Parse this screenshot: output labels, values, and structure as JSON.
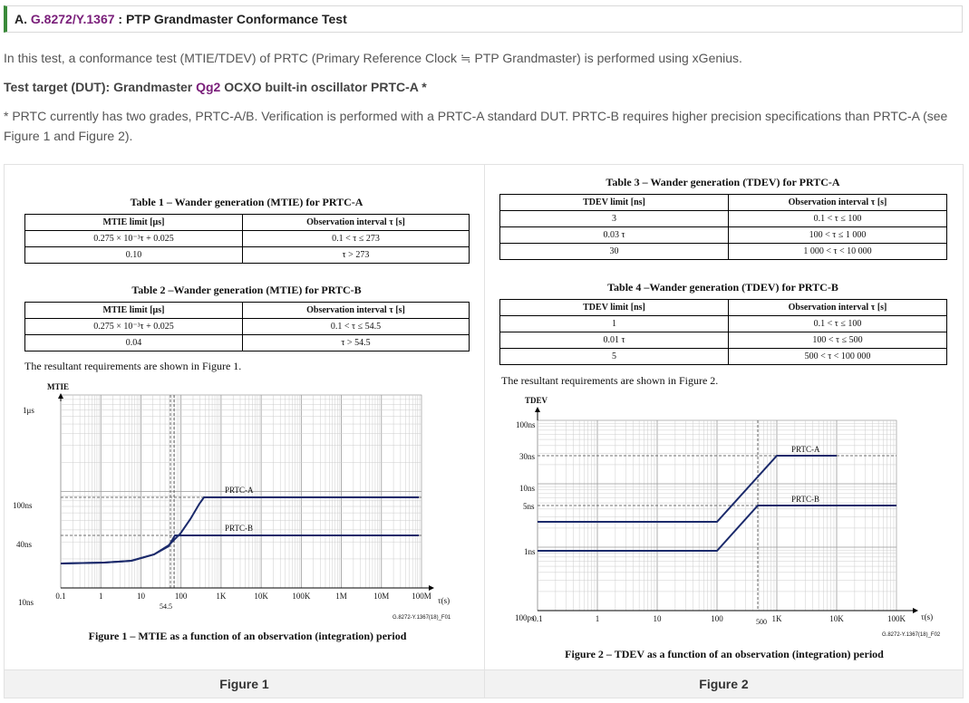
{
  "section": {
    "prefix": "A.",
    "link": "G.8272/Y.1367",
    "rest": ": PTP Grandmaster Conformance Test"
  },
  "intro": "In this test, a conformance test (MTIE/TDEV) of PRTC (Primary Reference Clock ≒ PTP Grandmaster) is performed using xGenius.",
  "target": {
    "a": "Test target (DUT): Grandmaster ",
    "link": "Qg2",
    "b": " OCXO built-in oscillator PRTC-A *"
  },
  "note_line1": "* PRTC currently has two grades, PRTC-A/B. Verification is performed with a PRTC-A standard DUT. PRTC-B requires higher precision specifications than PRTC-A (see",
  "note_line2": "Figure 1 and Figure 2).",
  "left": {
    "table1": {
      "caption": "Table 1 – Wander generation (MTIE) for PRTC-A",
      "headers": [
        "MTIE limit [μs]",
        "Observation interval τ [s]"
      ],
      "rows": [
        [
          "0.275 × 10⁻³τ + 0.025",
          "0.1 < τ ≤ 273"
        ],
        [
          "0.10",
          "τ > 273"
        ]
      ]
    },
    "table2": {
      "caption": "Table 2 –Wander generation (MTIE) for PRTC-B",
      "headers": [
        "MTIE limit [μs]",
        "Observation interval τ [s]"
      ],
      "rows": [
        [
          "0.275 × 10⁻³τ + 0.025",
          "0.1 < τ ≤ 54.5"
        ],
        [
          "0.04",
          "τ > 54.5"
        ]
      ]
    },
    "resultant": "The resultant requirements are shown in Figure 1.",
    "chart": {
      "ylabel": "MTIE",
      "yticks": [
        "1μs",
        "100ns",
        "40ns",
        "10ns"
      ],
      "xticks": [
        "0.1",
        "1",
        "10",
        "100",
        "1K",
        "10K",
        "100K",
        "1M",
        "10M",
        "100M"
      ],
      "xextra": "54.5",
      "xunit": "τ(s)",
      "code": "G.8272-Y.1367(18)_F01",
      "labelA": "PRTC-A",
      "labelB": "PRTC-B",
      "title": "Figure 1 – MTIE as a function of an observation (integration) period"
    },
    "caption": "Figure 1"
  },
  "right": {
    "table3": {
      "caption": "Table 3 – Wander generation (TDEV) for PRTC-A",
      "headers": [
        "TDEV limit [ns]",
        "Observation interval τ [s]"
      ],
      "rows": [
        [
          "3",
          "0.1 < τ ≤ 100"
        ],
        [
          "0.03 τ",
          "100 < τ ≤ 1 000"
        ],
        [
          "30",
          "1 000 < τ < 10 000"
        ]
      ]
    },
    "table4": {
      "caption": "Table 4 –Wander generation (TDEV) for PRTC-B",
      "headers": [
        "TDEV limit [ns]",
        "Observation interval τ [s]"
      ],
      "rows": [
        [
          "1",
          "0.1 < τ ≤ 100"
        ],
        [
          "0.01 τ",
          "100 < τ ≤ 500"
        ],
        [
          "5",
          "500 < τ < 100 000"
        ]
      ]
    },
    "resultant": "The resultant requirements are shown in Figure 2.",
    "chart": {
      "ylabel": "TDEV",
      "yticks": [
        "100ns",
        "30ns",
        "10ns",
        "5ns",
        "1ns",
        "100ps"
      ],
      "xticks": [
        "0.1",
        "1",
        "10",
        "100",
        "1K",
        "10K",
        "100K"
      ],
      "xextra": "500",
      "xunit": "τ(s)",
      "code": "G.8272-Y.1367(18)_F02",
      "labelA": "PRTC-A",
      "labelB": "PRTC-B",
      "title": "Figure 2 – TDEV as a function of an observation (integration) period"
    },
    "caption": "Figure 2"
  }
}
